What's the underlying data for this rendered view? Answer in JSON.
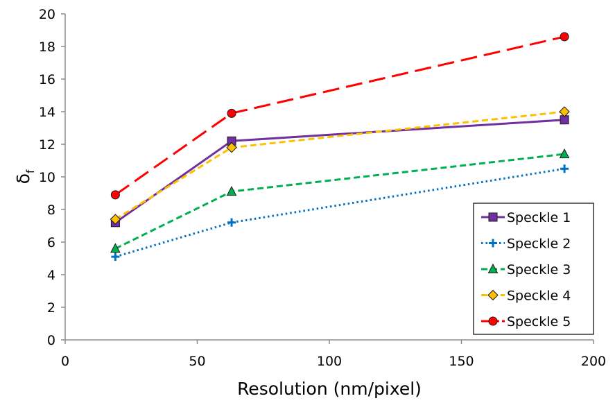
{
  "chart_data": {
    "type": "line",
    "title": "",
    "xlabel": "Resolution (nm/pixel)",
    "ylabel_main": "δ",
    "ylabel_sub": "f",
    "xlim": [
      0,
      200
    ],
    "ylim": [
      0,
      20
    ],
    "xticks": [
      "0",
      "50",
      "100",
      "150",
      "200"
    ],
    "yticks": [
      "0",
      "2",
      "4",
      "6",
      "8",
      "10",
      "12",
      "14",
      "16",
      "18",
      "20"
    ],
    "grid": false,
    "legend_position": "bottom-right",
    "x": [
      19,
      63,
      189
    ],
    "series": [
      {
        "name": "Speckle 1",
        "values": [
          7.2,
          12.2,
          13.5
        ],
        "color": "#7030a0",
        "marker": "square",
        "dash": "solid"
      },
      {
        "name": "Speckle 2",
        "values": [
          5.1,
          7.2,
          10.5
        ],
        "color": "#0070c0",
        "marker": "plus",
        "dash": "dotted"
      },
      {
        "name": "Speckle 3",
        "values": [
          5.6,
          9.1,
          11.4
        ],
        "color": "#00b050",
        "marker": "triangle",
        "dash": "dashed"
      },
      {
        "name": "Speckle 4",
        "values": [
          7.4,
          11.8,
          14.0
        ],
        "color": "#ffc000",
        "marker": "diamond",
        "dash": "dashed"
      },
      {
        "name": "Speckle 5",
        "values": [
          8.9,
          13.9,
          18.6
        ],
        "color": "#ff0000",
        "marker": "circle",
        "dash": "longdash"
      }
    ]
  }
}
